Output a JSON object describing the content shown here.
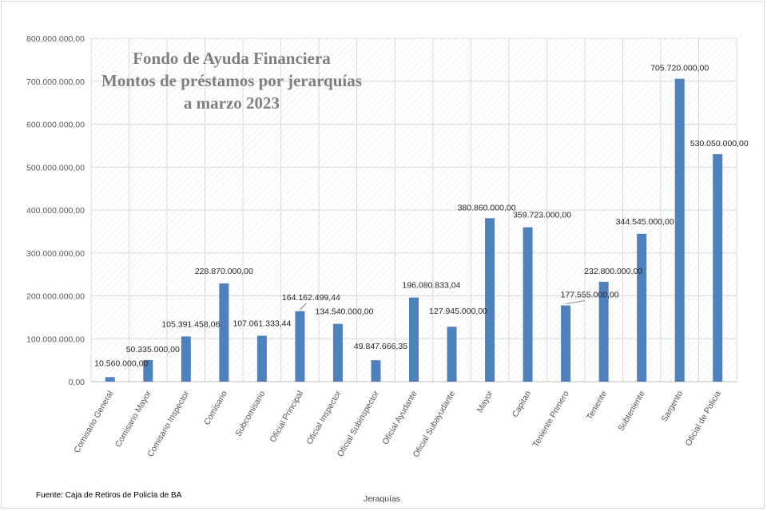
{
  "source_note": "Fuente: Caja de Retiros de Policía de BA",
  "chart_data": {
    "type": "bar",
    "title": [
      "Fondo de Ayuda Financiera",
      "Montos de préstamos por jerarquías",
      "a marzo 2023"
    ],
    "xlabel": "Jeraquías",
    "ylabel": "",
    "ylim": [
      0,
      800000000
    ],
    "ytick_labels": [
      "0,00",
      "100.000.000,00",
      "200.000.000,00",
      "300.000.000,00",
      "400.000.000,00",
      "500.000.000,00",
      "600.000.000,00",
      "700.000.000,00",
      "800.000.000,00"
    ],
    "grid": true,
    "legend": "none",
    "bar_color": "#4f81bd",
    "categories": [
      "Comisario General",
      "Comisario Mayor",
      "Comisario Inspector",
      "Comisario",
      "Subcomisario",
      "Oficial Principal",
      "Oficial Inspector",
      "Oficial Subinspector",
      "Oficial Ayudante",
      "Oficial Subayudante",
      "Mayor",
      "Capitan",
      "Teniente Primero",
      "Teniente",
      "Subteniente",
      "Sargento",
      "Oficial de Policia"
    ],
    "values": [
      10560000,
      50335000,
      105391458.06,
      228870000,
      107061333.44,
      164162499.44,
      134540000,
      49847666.35,
      196080833.04,
      127945000,
      380860000,
      359723000,
      177555000,
      232800000,
      344545000,
      705720000,
      530050000
    ],
    "data_labels": [
      "10.560.000,00",
      "50.335.000,00",
      "105.391.458,06",
      "228.870.000,00",
      "107.061.333,44",
      "164.162.499,44",
      "134.540.000,00",
      "49.847.666,35",
      "196.080.833,04",
      "127.945.000,00",
      "380.860.000,00",
      "359.723.000,00",
      "177.555.000,00",
      "232.800.000,00",
      "344.545.000,00",
      "705.720.000,00",
      "530.050.000,00"
    ]
  }
}
